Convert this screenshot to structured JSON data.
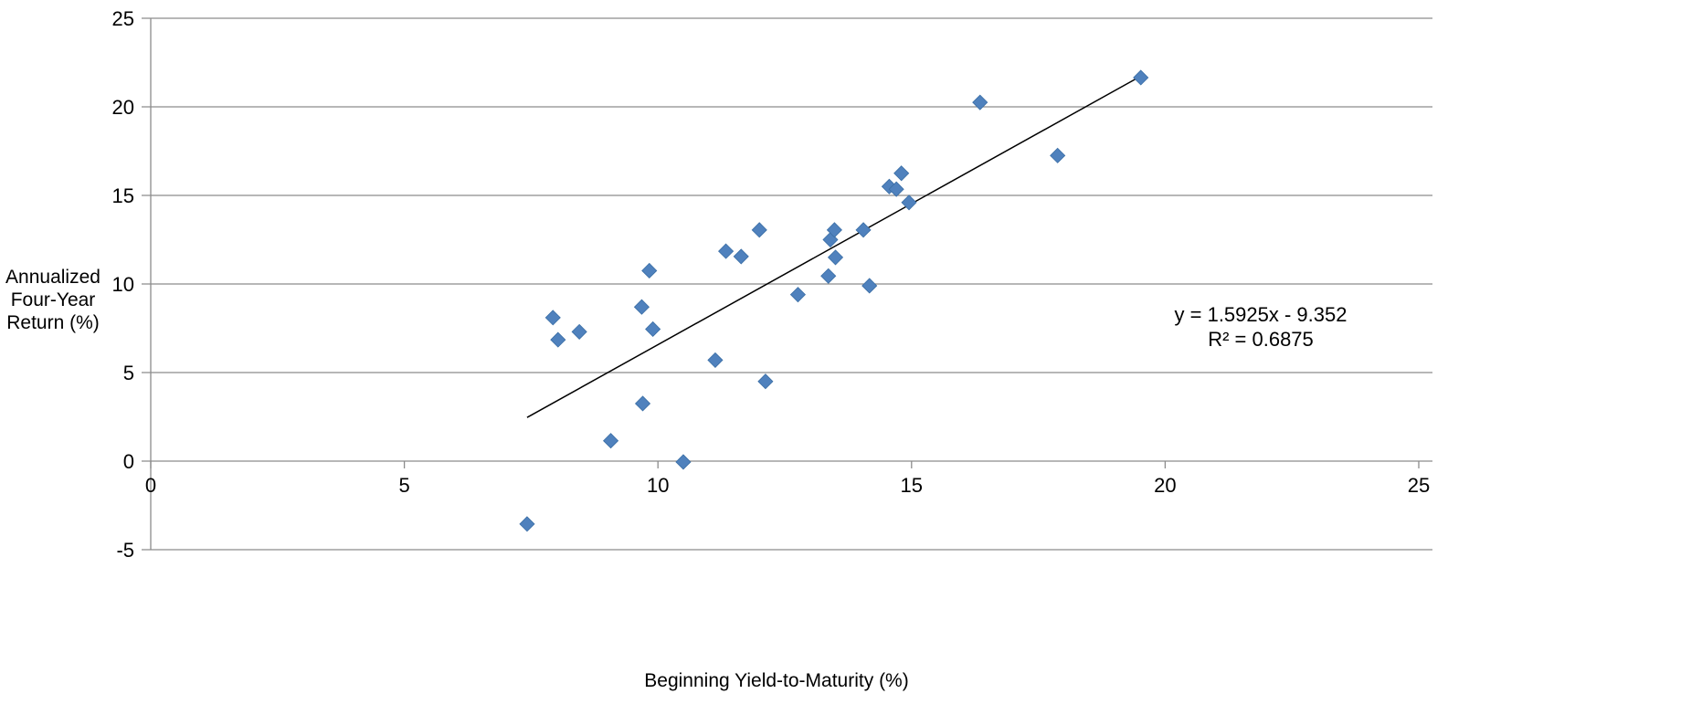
{
  "chart_data": {
    "type": "scatter",
    "title": "",
    "xlabel": "Beginning Yield-to-Maturity (%)",
    "ylabel_lines": [
      "Annualized",
      "Four-Year",
      "Return (%)"
    ],
    "xlim": [
      0,
      25
    ],
    "ylim": [
      -5,
      25
    ],
    "x_ticks": [
      0,
      5,
      10,
      15,
      20,
      25
    ],
    "y_ticks": [
      -5,
      0,
      5,
      10,
      15,
      20,
      25
    ],
    "grid": "horizontal",
    "marker": "diamond",
    "marker_color": "#4F81BD",
    "series": [
      {
        "points": [
          {
            "x": 7.42,
            "y": -3.55
          },
          {
            "x": 7.93,
            "y": 8.1
          },
          {
            "x": 8.03,
            "y": 6.85
          },
          {
            "x": 8.45,
            "y": 7.3
          },
          {
            "x": 9.07,
            "y": 1.15
          },
          {
            "x": 9.68,
            "y": 8.7
          },
          {
            "x": 9.7,
            "y": 3.25
          },
          {
            "x": 9.83,
            "y": 10.75
          },
          {
            "x": 9.9,
            "y": 7.45
          },
          {
            "x": 10.5,
            "y": -0.05
          },
          {
            "x": 11.13,
            "y": 5.7
          },
          {
            "x": 11.34,
            "y": 11.85
          },
          {
            "x": 11.64,
            "y": 11.55
          },
          {
            "x": 12.0,
            "y": 13.05
          },
          {
            "x": 12.12,
            "y": 4.5
          },
          {
            "x": 12.76,
            "y": 9.4
          },
          {
            "x": 13.36,
            "y": 10.45
          },
          {
            "x": 13.4,
            "y": 12.5
          },
          {
            "x": 13.48,
            "y": 13.05
          },
          {
            "x": 13.5,
            "y": 11.5
          },
          {
            "x": 14.05,
            "y": 13.05
          },
          {
            "x": 14.17,
            "y": 9.9
          },
          {
            "x": 14.56,
            "y": 15.5
          },
          {
            "x": 14.7,
            "y": 15.35
          },
          {
            "x": 14.8,
            "y": 16.25
          },
          {
            "x": 14.95,
            "y": 14.6
          },
          {
            "x": 16.35,
            "y": 20.25
          },
          {
            "x": 17.88,
            "y": 17.25
          },
          {
            "x": 19.52,
            "y": 21.65
          }
        ]
      }
    ],
    "trendline": {
      "slope": 1.5925,
      "intercept": -9.352,
      "x_range": [
        7.42,
        19.52
      ],
      "equation_label": "y = 1.5925x - 9.352",
      "r2_label": "R² = 0.6875"
    }
  }
}
